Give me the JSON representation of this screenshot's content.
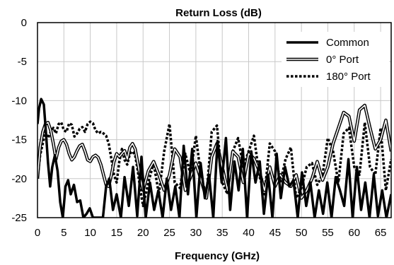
{
  "chart_data": {
    "type": "line",
    "title": "Return Loss (dB)",
    "xlabel": "Frequency (GHz)",
    "ylabel": "",
    "xlim": [
      0,
      67
    ],
    "ylim": [
      -25,
      0
    ],
    "x_ticks": [
      "0",
      "5",
      "10",
      "15",
      "20",
      "25",
      "30",
      "35",
      "40",
      "45",
      "50",
      "55",
      "60",
      "65"
    ],
    "y_ticks": [
      "0",
      "-5",
      "-10",
      "-15",
      "-20",
      "-25"
    ],
    "grid": true,
    "legend_position": "top-right",
    "series": [
      {
        "name": "Common",
        "style": "solid-thick",
        "color": "#000000",
        "x": [
          0,
          0.3,
          0.7,
          1.2,
          1.6,
          2,
          2.4,
          2.8,
          3.3,
          3.8,
          4.3,
          4.8,
          5.3,
          5.8,
          6.3,
          6.9,
          7.5,
          8.1,
          8.7,
          9.3,
          9.9,
          10.5,
          11.2,
          11.8,
          12.4,
          13.0,
          13.6,
          14.3,
          15.0,
          15.8,
          16.5,
          17.3,
          18.1,
          18.9,
          19.7,
          20.5,
          21.3,
          22.1,
          22.9,
          23.7,
          24.5,
          25.3,
          26.1,
          26.9,
          27.7,
          28.5,
          29.3,
          30.1,
          30.9,
          31.7,
          32.5,
          33.3,
          34.1,
          34.9,
          35.7,
          36.5,
          37.3,
          38.1,
          38.9,
          39.7,
          40.5,
          41.3,
          42.1,
          42.9,
          43.7,
          44.5,
          45.3,
          46.1,
          46.9,
          47.7,
          48.5,
          49.3,
          50.1,
          50.9,
          51.7,
          52.5,
          53.3,
          54.1,
          54.9,
          55.7,
          56.5,
          57.3,
          58.1,
          58.9,
          59.7,
          60.5,
          61.3,
          62.1,
          62.9,
          63.7,
          64.5,
          65.3,
          66.1,
          67
        ],
        "y": [
          -13,
          -11,
          -9.8,
          -10.5,
          -14,
          -18,
          -21,
          -18.5,
          -17,
          -19,
          -23,
          -25,
          -21,
          -20.2,
          -22,
          -20.8,
          -23,
          -22.8,
          -25,
          -24.5,
          -23.8,
          -25,
          -25,
          -25,
          -25,
          -21,
          -20,
          -24,
          -22,
          -25,
          -19.8,
          -23.5,
          -18.5,
          -24.8,
          -17.2,
          -25,
          -20.5,
          -24,
          -21.5,
          -25,
          -20,
          -24,
          -21,
          -25,
          -15.8,
          -22,
          -16.2,
          -25,
          -18,
          -22.5,
          -19.5,
          -25,
          -15.2,
          -20.5,
          -14.8,
          -24,
          -17.8,
          -21.5,
          -16.2,
          -25,
          -16.5,
          -20.5,
          -17.8,
          -24.5,
          -19.5,
          -25,
          -16.8,
          -22.5,
          -18.5,
          -21,
          -20.2,
          -25,
          -19.2,
          -23.5,
          -20.5,
          -25,
          -21.5,
          -24.5,
          -20.5,
          -25,
          -19.8,
          -21.5,
          -23.5,
          -17.5,
          -25,
          -18.5,
          -24,
          -20.5,
          -25,
          -19.5,
          -24.8,
          -21.5,
          -25,
          -22
        ]
      },
      {
        "name": "0° Port",
        "style": "double-line",
        "color": "#000000",
        "x": [
          0,
          0.5,
          1,
          1.5,
          2,
          2.5,
          3,
          3.5,
          4,
          4.5,
          5,
          5.5,
          6,
          6.5,
          7,
          7.5,
          8,
          8.5,
          9,
          9.5,
          10,
          10.5,
          11,
          11.5,
          12,
          12.5,
          13,
          13.5,
          14,
          14.5,
          15,
          15.5,
          16,
          16.5,
          17,
          17.5,
          18,
          18.5,
          19,
          19.5,
          20,
          21,
          22,
          23,
          24,
          25,
          26,
          27,
          28,
          29,
          30,
          31,
          32,
          33,
          34,
          35,
          36,
          37,
          38,
          39,
          40,
          41,
          42,
          43,
          44,
          45,
          46,
          47,
          48,
          49,
          50,
          51,
          52,
          53,
          54,
          55,
          56,
          57,
          58,
          59,
          60,
          61,
          62,
          63,
          64,
          65,
          66,
          67
        ],
        "y": [
          -20,
          -16,
          -14,
          -13,
          -12.8,
          -13.8,
          -15.5,
          -17.5,
          -16,
          -15.2,
          -15,
          -15.6,
          -16.8,
          -17.6,
          -17.2,
          -16.4,
          -15.8,
          -15.6,
          -16.5,
          -17.6,
          -17.8,
          -17.2,
          -17,
          -17.3,
          -18.2,
          -19.5,
          -20.8,
          -21,
          -19.5,
          -17.8,
          -16.8,
          -17.2,
          -16.8,
          -16.4,
          -17.5,
          -16,
          -15.5,
          -16.2,
          -18,
          -20,
          -21.5,
          -19,
          -17.8,
          -19.5,
          -21.5,
          -19.5,
          -16.2,
          -17.2,
          -21.5,
          -19.8,
          -18,
          -20.2,
          -22.5,
          -17.2,
          -15.5,
          -18.5,
          -21.5,
          -16.5,
          -17.2,
          -20.5,
          -16.8,
          -17.4,
          -19,
          -21.5,
          -18.5,
          -21,
          -19.5,
          -20.5,
          -21,
          -19.5,
          -22.5,
          -21.5,
          -20,
          -17.8,
          -20.2,
          -18.5,
          -15.5,
          -13.5,
          -11.5,
          -12,
          -15.2,
          -11.2,
          -10.6,
          -13.5,
          -16.2,
          -15,
          -12.5,
          -16.5
        ]
      },
      {
        "name": "180° Port",
        "style": "dotted-thick",
        "color": "#000000",
        "x": [
          0,
          0.5,
          1,
          1.5,
          2,
          2.5,
          3,
          3.5,
          4,
          4.5,
          5,
          5.5,
          6,
          6.5,
          7,
          7.5,
          8,
          8.5,
          9,
          9.5,
          10,
          10.5,
          11,
          11.5,
          12,
          12.5,
          13,
          13.5,
          14,
          14.5,
          15,
          15.5,
          16,
          16.5,
          17,
          17.5,
          18,
          18.5,
          19,
          19.5,
          20,
          21,
          22,
          23,
          24,
          25,
          26,
          27,
          28,
          29,
          30,
          31,
          32,
          33,
          34,
          35,
          36,
          37,
          38,
          39,
          40,
          41,
          42,
          43,
          44,
          45,
          46,
          47,
          48,
          49,
          50,
          51,
          52,
          53,
          54,
          55,
          56,
          57,
          58,
          59,
          60,
          61,
          62,
          63,
          64,
          65,
          66,
          67
        ],
        "y": [
          -20,
          -17,
          -15.5,
          -14,
          -14.8,
          -14,
          -13.5,
          -14.2,
          -13,
          -12.8,
          -13.8,
          -14,
          -12.9,
          -13.1,
          -14.6,
          -14.2,
          -13.6,
          -13.4,
          -14,
          -13,
          -12.7,
          -12.9,
          -13.8,
          -14.2,
          -14,
          -14.2,
          -14.5,
          -15.5,
          -17.5,
          -19.5,
          -20.5,
          -17.8,
          -16.2,
          -17.6,
          -18.2,
          -16.8,
          -16.5,
          -17,
          -19,
          -21.5,
          -23.5,
          -20.5,
          -18,
          -22,
          -16.5,
          -13,
          -20.5,
          -21.2,
          -16.8,
          -19.5,
          -14.5,
          -19.8,
          -22.2,
          -14,
          -13.2,
          -20.5,
          -22,
          -16.5,
          -14.8,
          -18.5,
          -16.5,
          -14.5,
          -19.5,
          -22,
          -15.5,
          -16.5,
          -20.5,
          -17.5,
          -16,
          -22.5,
          -21.2,
          -18.5,
          -18,
          -20.8,
          -19.5,
          -14.8,
          -16.5,
          -20.5,
          -14.2,
          -13.5,
          -18.5,
          -19.5,
          -12.8,
          -18.5,
          -19.5,
          -13.5,
          -21.5,
          -17.5
        ]
      }
    ]
  }
}
